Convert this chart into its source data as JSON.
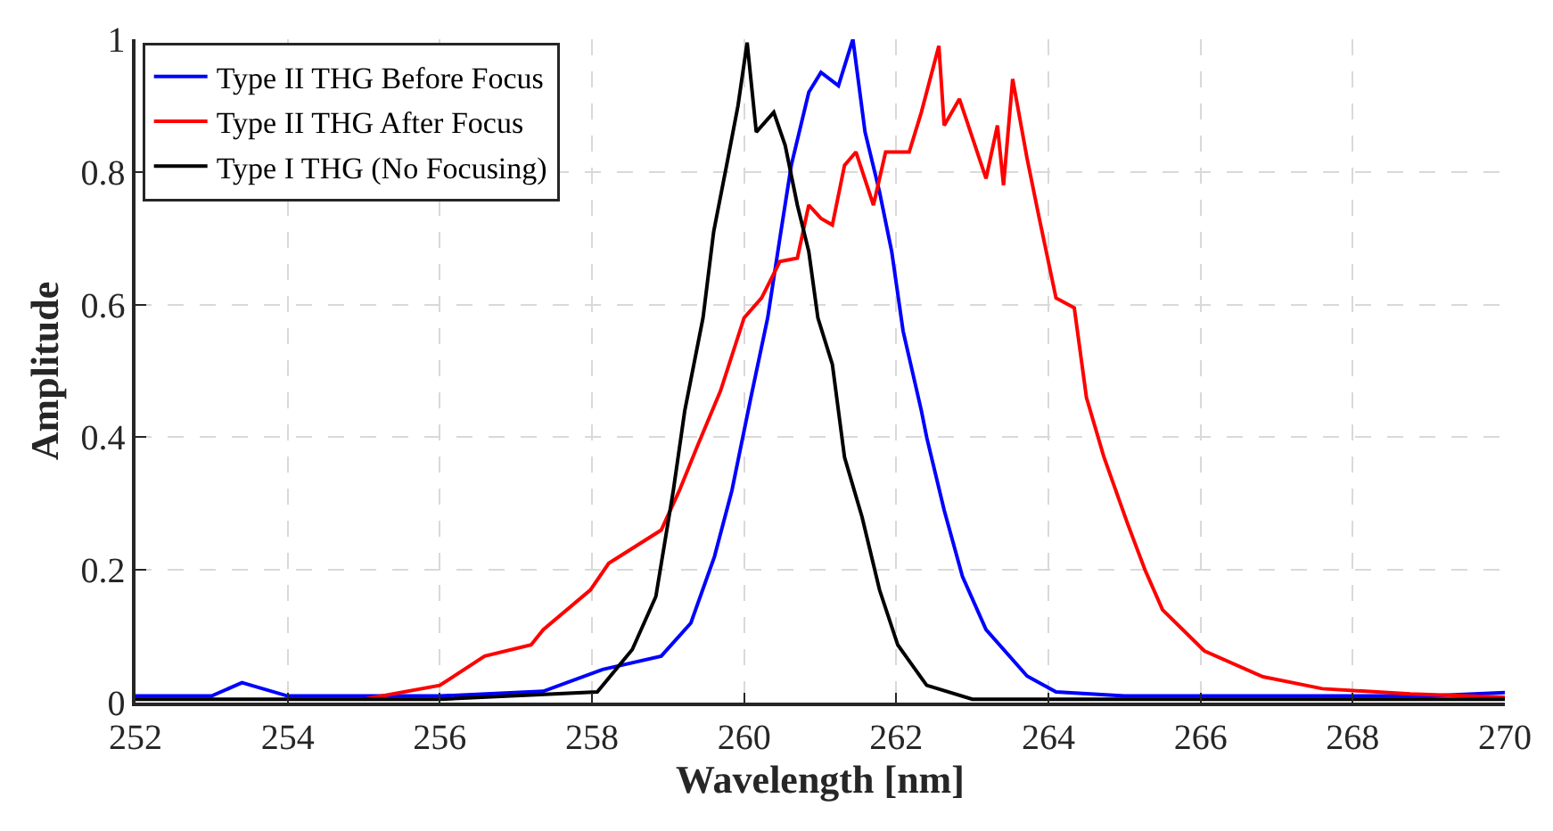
{
  "chart_data": {
    "type": "line",
    "xlabel": "Wavelength [nm]",
    "ylabel": "Amplitude",
    "xlim": [
      252,
      270
    ],
    "ylim": [
      0,
      1
    ],
    "xticks": [
      252,
      254,
      256,
      258,
      260,
      262,
      264,
      266,
      268,
      270
    ],
    "yticks": [
      0,
      0.2,
      0.4,
      0.6,
      0.8,
      1
    ],
    "grid": true,
    "legend": "top left",
    "line_style": "solid",
    "series": [
      {
        "name": "Type II THG Before Focus",
        "color": "#0000ff",
        "x": [
          252,
          253,
          253.4,
          254,
          255,
          256,
          257.36,
          258.14,
          258.91,
          259.3,
          259.61,
          259.84,
          260.08,
          260.31,
          260.47,
          260.62,
          260.85,
          261.01,
          261.24,
          261.43,
          261.59,
          261.78,
          261.94,
          262.09,
          262.33,
          262.4,
          262.63,
          262.87,
          263.18,
          263.72,
          264.1,
          265,
          266,
          267,
          268,
          269,
          270
        ],
        "values": [
          0.01,
          0.01,
          0.03,
          0.01,
          0.01,
          0.01,
          0.017,
          0.05,
          0.07,
          0.12,
          0.22,
          0.32,
          0.455,
          0.58,
          0.7,
          0.81,
          0.92,
          0.95,
          0.93,
          1.0,
          0.86,
          0.77,
          0.68,
          0.56,
          0.44,
          0.4,
          0.29,
          0.19,
          0.11,
          0.04,
          0.016,
          0.01,
          0.01,
          0.01,
          0.01,
          0.01,
          0.015
        ]
      },
      {
        "name": "Type II THG After Focus",
        "color": "#ff0000",
        "x": [
          255,
          256,
          256.59,
          257.2,
          257.36,
          257.98,
          258.22,
          258.91,
          259.15,
          259.38,
          259.69,
          260,
          260.23,
          260.47,
          260.7,
          260.85,
          261.01,
          261.16,
          261.32,
          261.47,
          261.7,
          261.86,
          262.17,
          262.33,
          262.56,
          262.63,
          262.83,
          263.18,
          263.33,
          263.41,
          263.53,
          263.72,
          263.88,
          264.1,
          264.34,
          264.5,
          264.73,
          265.04,
          265.27,
          265.5,
          266.05,
          266.82,
          267.6,
          268.76,
          270
        ],
        "values": [
          0.005,
          0.026,
          0.07,
          0.087,
          0.11,
          0.17,
          0.21,
          0.26,
          0.32,
          0.385,
          0.47,
          0.58,
          0.61,
          0.665,
          0.67,
          0.75,
          0.73,
          0.72,
          0.81,
          0.83,
          0.75,
          0.83,
          0.83,
          0.89,
          0.99,
          0.87,
          0.91,
          0.79,
          0.87,
          0.78,
          0.94,
          0.82,
          0.73,
          0.61,
          0.595,
          0.46,
          0.37,
          0.27,
          0.2,
          0.14,
          0.078,
          0.039,
          0.021,
          0.013,
          0.008
        ]
      },
      {
        "name": "Type I THG (No Focusing)",
        "color": "#000000",
        "x": [
          252,
          256,
          258.07,
          258.53,
          258.84,
          259.07,
          259.22,
          259.46,
          259.6,
          259.77,
          259.92,
          260.04,
          260.16,
          260.39,
          260.54,
          260.7,
          260.85,
          260.97,
          261.16,
          261.32,
          261.55,
          261.78,
          262.02,
          262.4,
          263,
          266,
          270
        ],
        "values": [
          0.005,
          0.005,
          0.016,
          0.08,
          0.16,
          0.32,
          0.44,
          0.58,
          0.71,
          0.81,
          0.9,
          0.995,
          0.86,
          0.89,
          0.84,
          0.75,
          0.68,
          0.58,
          0.51,
          0.37,
          0.28,
          0.17,
          0.087,
          0.026,
          0.005,
          0.005,
          0.005
        ]
      }
    ]
  }
}
